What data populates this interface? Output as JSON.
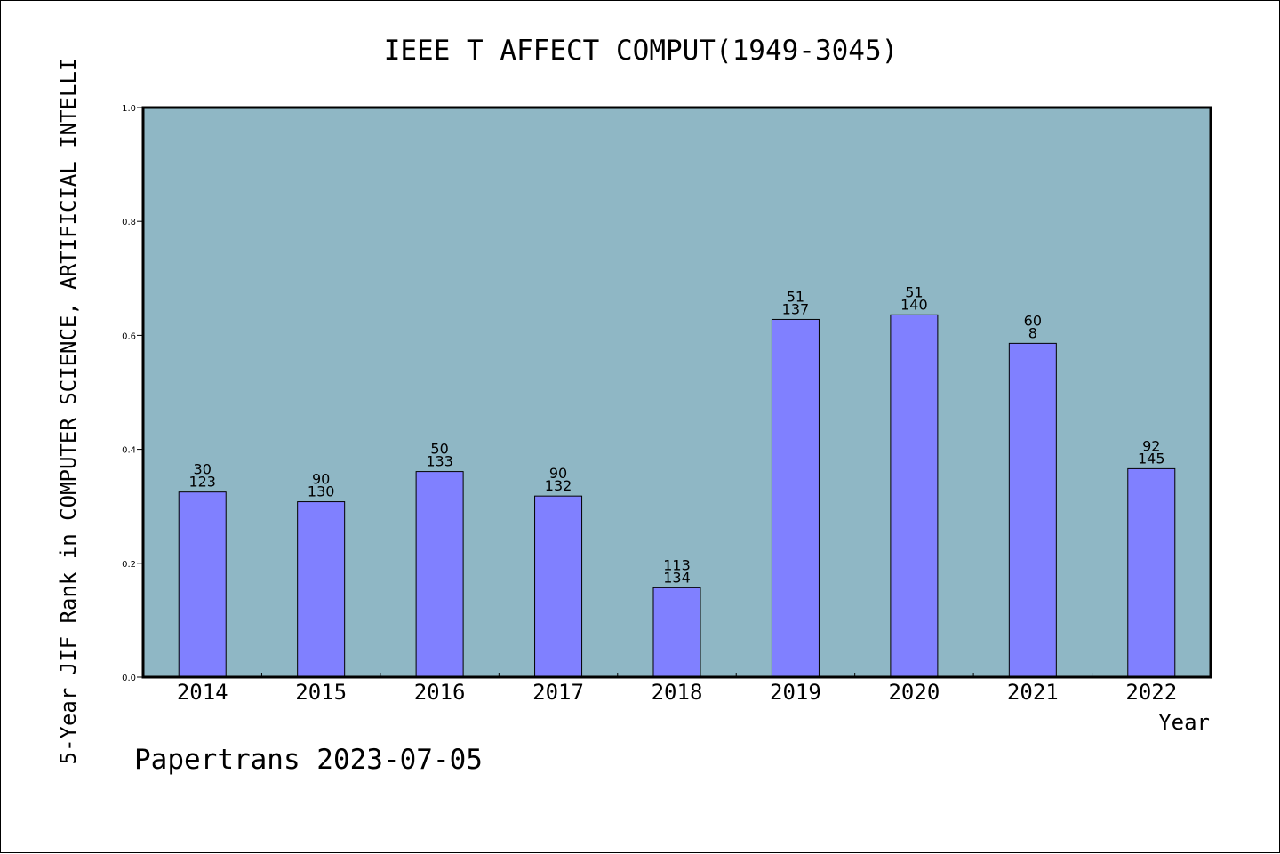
{
  "chart_data": {
    "type": "bar",
    "title": "IEEE T AFFECT COMPUT(1949-3045)",
    "ylabel": "5-Year JIF Rank in COMPUTER SCIENCE, ARTIFICIAL INTELLI",
    "xlabel": "Year",
    "footer": "Papertrans 2023-07-05",
    "ylim": [
      0,
      1.0
    ],
    "yticks": [
      "0.0",
      "0.2",
      "0.4",
      "0.6",
      "0.8",
      "1.0"
    ],
    "yticks_values": [
      0,
      0.2,
      0.4,
      0.6,
      0.8,
      1.0
    ],
    "grid": false,
    "categories": [
      "2014",
      "2015",
      "2016",
      "2017",
      "2018",
      "2019",
      "2020",
      "2021",
      "2022"
    ],
    "values": [
      0.325,
      0.308,
      0.361,
      0.318,
      0.157,
      0.628,
      0.636,
      0.586,
      0.366
    ],
    "labels_top": [
      "30",
      "90",
      "50",
      "90",
      "113",
      "51",
      "51",
      "60",
      "92"
    ],
    "labels_bottom": [
      "123",
      "130",
      "133",
      "132",
      "134",
      "137",
      "140",
      "8",
      "145"
    ],
    "colors": {
      "plot_bg": "#8fb7c5",
      "bar": "#8080ff",
      "bar_edge": "#000000"
    }
  }
}
